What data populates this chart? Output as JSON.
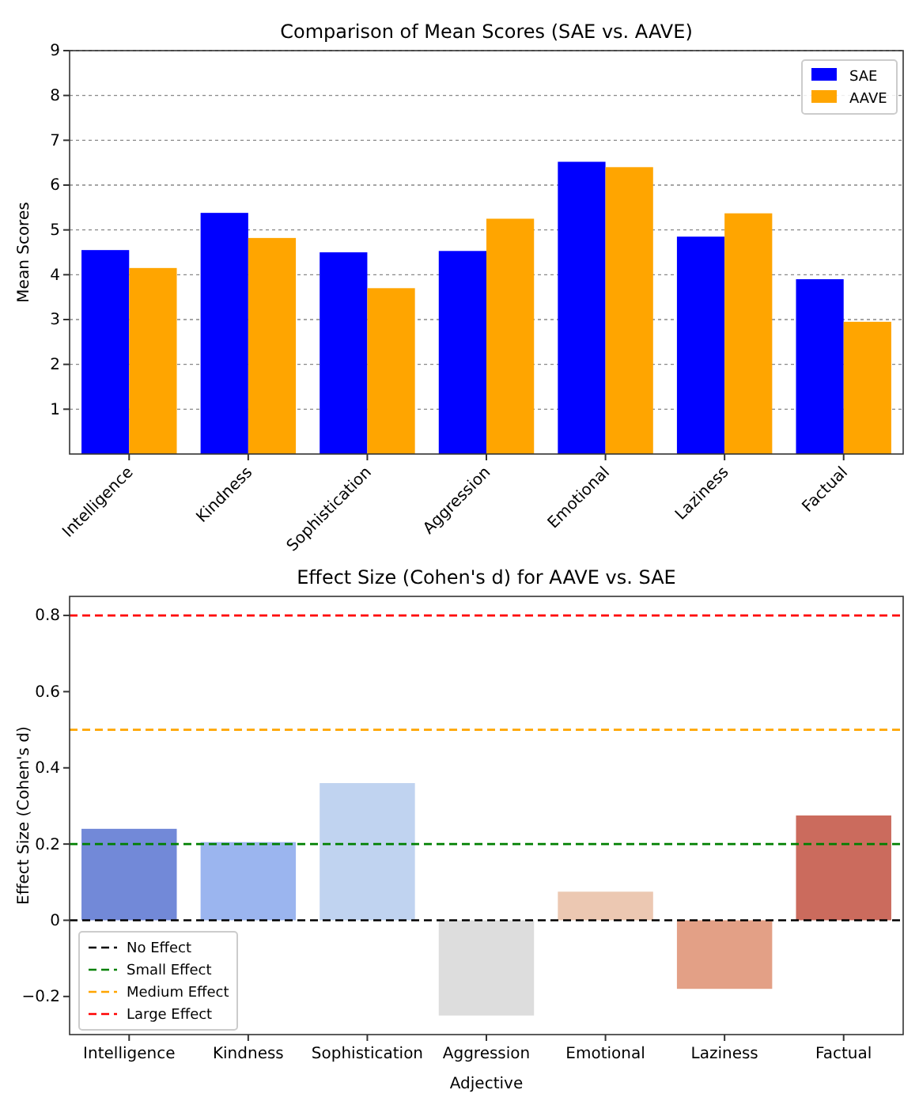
{
  "chart_data": [
    {
      "type": "bar",
      "title": "Comparison of Mean Scores (SAE vs. AAVE)",
      "ylabel": "Mean Scores",
      "categories": [
        "Intelligence",
        "Kindness",
        "Sophistication",
        "Aggression",
        "Emotional",
        "Laziness",
        "Factual"
      ],
      "series": [
        {
          "name": "SAE",
          "color": "#0000ff",
          "values": [
            4.55,
            5.38,
            4.5,
            4.53,
            6.52,
            4.85,
            3.9
          ]
        },
        {
          "name": "AAVE",
          "color": "#ffa500",
          "values": [
            4.15,
            4.82,
            3.7,
            5.25,
            6.4,
            5.37,
            2.95
          ]
        }
      ],
      "ylim": [
        0,
        9
      ],
      "yticks": [
        1,
        2,
        3,
        4,
        5,
        6,
        7,
        8,
        9
      ],
      "grid": "y",
      "legend": "top right"
    },
    {
      "type": "bar",
      "title": "Effect Size (Cohen's d) for AAVE vs. SAE",
      "xlabel": "Adjective",
      "ylabel": "Effect Size (Cohen's d)",
      "categories": [
        "Intelligence",
        "Kindness",
        "Sophistication",
        "Aggression",
        "Emotional",
        "Laziness",
        "Factual"
      ],
      "values": [
        0.24,
        0.205,
        0.36,
        -0.25,
        0.075,
        -0.18,
        0.275
      ],
      "colors": [
        "#7289d8",
        "#9bb5ef",
        "#c0d3f0",
        "#dddddd",
        "#ecc8b2",
        "#e3a086",
        "#cb6b5d"
      ],
      "ylim": [
        -0.3,
        0.85
      ],
      "yticks": [
        -0.2,
        0,
        0.2,
        0.4,
        0.6,
        0.8
      ],
      "ref_lines": [
        {
          "axis": "y",
          "value": 0,
          "label": "No Effect",
          "color": "#000000",
          "line_style": "dashed"
        },
        {
          "axis": "y",
          "value": 0.2,
          "label": "Small Effect",
          "color": "#008000",
          "line_style": "dashed"
        },
        {
          "axis": "y",
          "value": 0.5,
          "label": "Medium Effect",
          "color": "#ffa500",
          "line_style": "dashed"
        },
        {
          "axis": "y",
          "value": 0.8,
          "label": "Large Effect",
          "color": "#ff0000",
          "line_style": "dashed"
        }
      ],
      "legend": "bottom left"
    }
  ]
}
